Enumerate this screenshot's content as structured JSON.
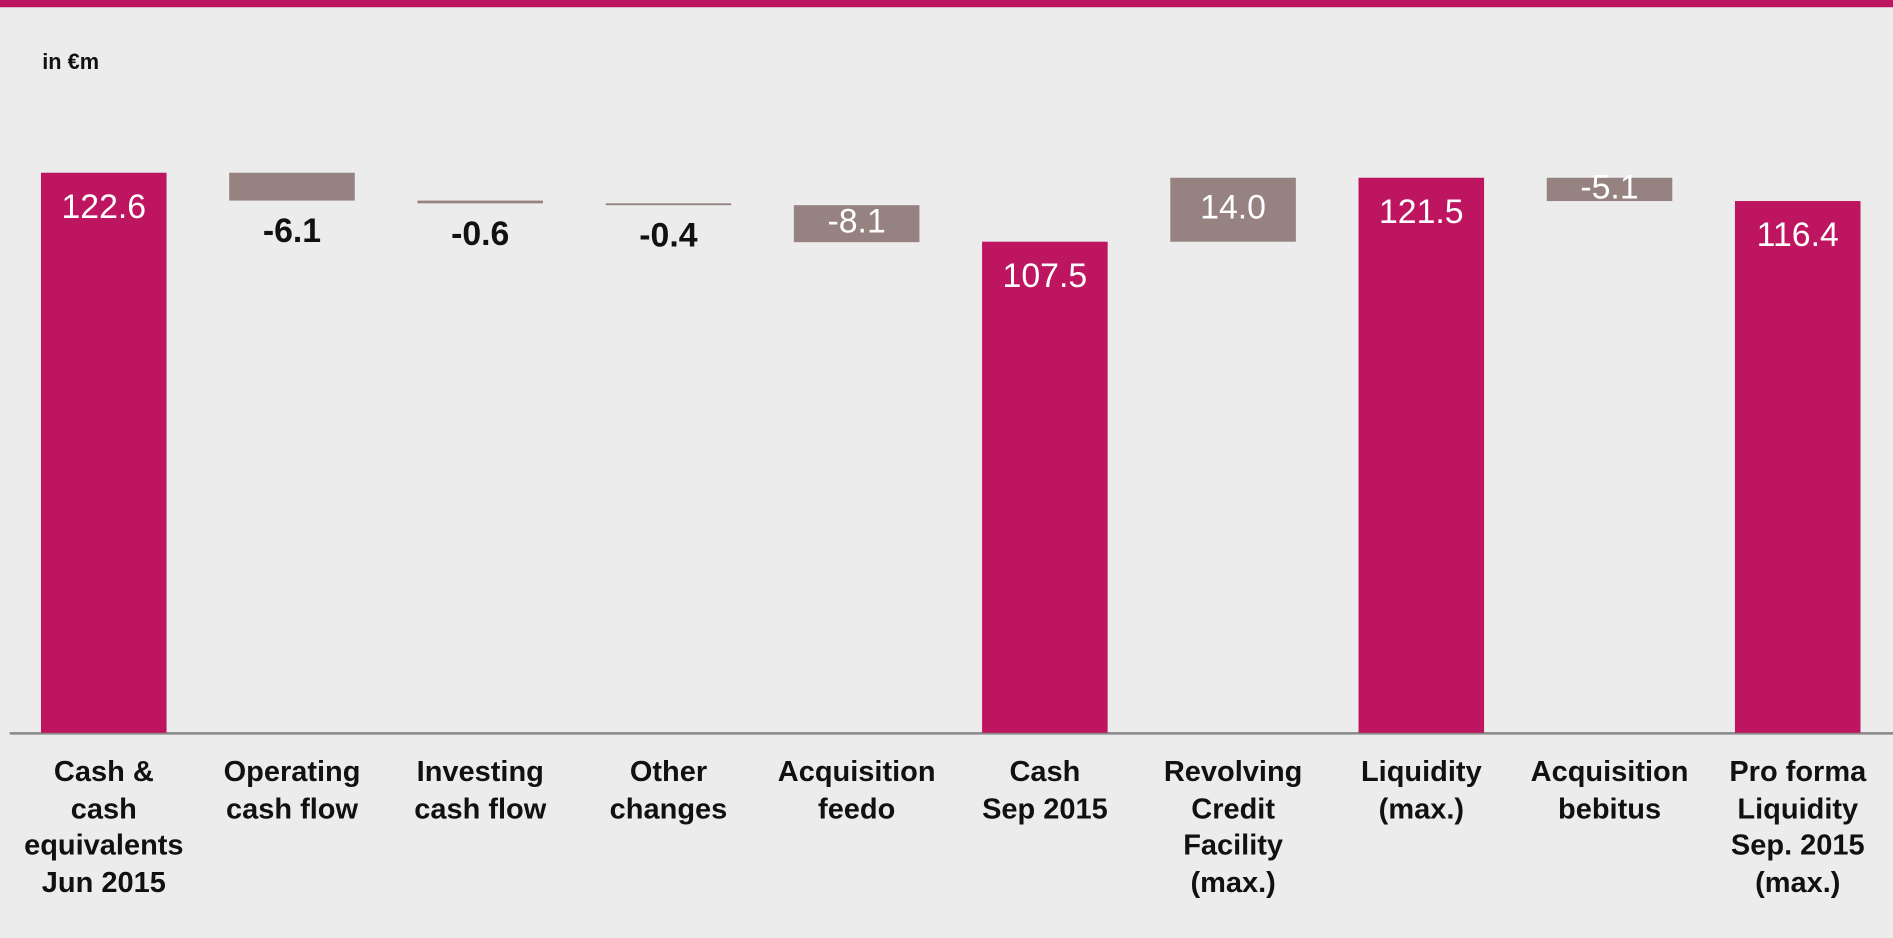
{
  "chart_data": {
    "type": "waterfall",
    "subtitle": "in €m",
    "categories": [
      "Cash &\ncash\nequivalents\nJun 2015",
      "Operating\ncash flow",
      "Investing\ncash flow",
      "Other\nchanges",
      "Acquisition\nfeedo",
      "Cash\nSep 2015",
      "Revolving\nCredit\nFacility\n(max.)",
      "Liquidity\n(max.)",
      "Acquisition\nbebitus",
      "Pro forma\nLiquidity\nSep. 2015\n(max.)"
    ],
    "values": [
      122.6,
      -6.1,
      -0.6,
      -0.4,
      -8.1,
      107.5,
      14.0,
      121.5,
      -5.1,
      116.4
    ],
    "value_labels": [
      "122.6",
      "-6.1",
      "-0.6",
      "-0.4",
      "-8.1",
      "107.5",
      "14.0",
      "121.5",
      "-5.1",
      "116.4"
    ],
    "measures": [
      "total",
      "relative",
      "relative",
      "relative",
      "relative",
      "total",
      "relative",
      "total",
      "relative",
      "total"
    ],
    "label_positions": [
      "inside",
      "below",
      "below",
      "below",
      "inside",
      "inside",
      "inside",
      "inside",
      "inside",
      "inside"
    ],
    "total_color": "#be1560",
    "delta_color": "#978282",
    "ylim": [
      0,
      125
    ]
  }
}
